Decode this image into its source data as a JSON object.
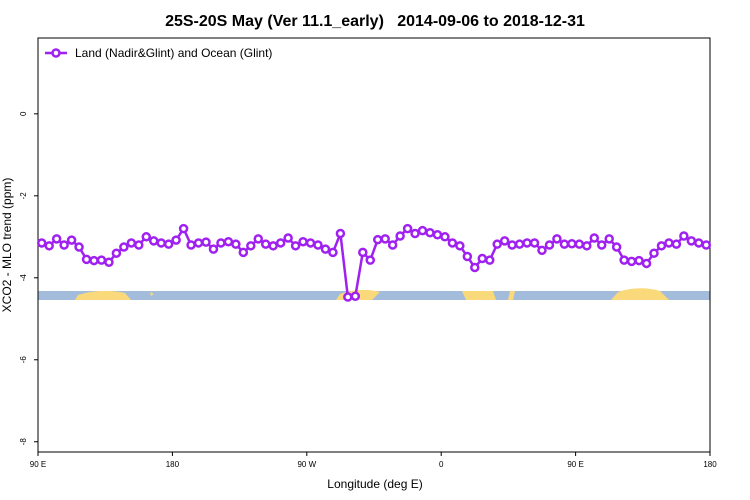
{
  "chart_data": {
    "type": "line",
    "title": "25S-20S May (Ver 11.1_early)   2014-09-06 to 2018-12-31",
    "x_label": "Longitude (deg E)",
    "y_label": "XCO2 - MLO trend (ppm)",
    "xlim": [
      90,
      540
    ],
    "xticks": [
      {
        "value": 90,
        "label": "90 E"
      },
      180,
      {
        "value": 270,
        "label": "90 W"
      },
      {
        "value": 360,
        "label": "0"
      },
      {
        "value": 450,
        "label": "90 E"
      },
      {
        "value": 540,
        "label": "180"
      }
    ],
    "ylim": [
      -8.25,
      1.85
    ],
    "yticks": [
      0,
      -2,
      -4,
      -6,
      -8
    ],
    "legend": "top-left",
    "x": [
      92.5,
      97.5,
      102.5,
      107.5,
      112.5,
      117.5,
      122.5,
      127.5,
      132.5,
      137.5,
      142.5,
      147.5,
      152.5,
      157.5,
      162.5,
      167.5,
      172.5,
      177.5,
      182.5,
      187.5,
      192.5,
      197.5,
      202.5,
      207.5,
      212.5,
      217.5,
      222.5,
      227.5,
      232.5,
      237.5,
      242.5,
      247.5,
      252.5,
      257.5,
      262.5,
      267.5,
      272.5,
      277.5,
      282.5,
      287.5,
      292.5,
      297.5,
      302.5,
      307.5,
      312.5,
      317.5,
      322.5,
      327.5,
      332.5,
      337.5,
      342.5,
      347.5,
      352.5,
      357.5,
      362.5,
      367.5,
      372.5,
      377.5,
      382.5,
      387.5,
      392.5,
      397.5,
      402.5,
      407.5,
      412.5,
      417.5,
      422.5,
      427.5,
      432.5,
      437.5,
      442.5,
      447.5,
      452.5,
      457.5,
      462.5,
      467.5,
      472.5,
      477.5,
      482.5,
      487.5,
      492.5,
      497.5,
      502.5,
      507.5,
      512.5,
      517.5,
      522.5,
      527.5,
      532.5,
      537.5
    ],
    "series": [
      {
        "name": "Land (Nadir&Glint) and Ocean (Glint)",
        "color": "#a020f0",
        "values": [
          -3.15,
          -3.22,
          -3.05,
          -3.2,
          -3.08,
          -3.25,
          -3.55,
          -3.58,
          -3.57,
          -3.62,
          -3.4,
          -3.25,
          -3.15,
          -3.2,
          -3.0,
          -3.1,
          -3.15,
          -3.18,
          -3.08,
          -2.8,
          -3.2,
          -3.15,
          -3.13,
          -3.3,
          -3.15,
          -3.12,
          -3.18,
          -3.38,
          -3.22,
          -3.05,
          -3.18,
          -3.22,
          -3.15,
          -3.03,
          -3.22,
          -3.12,
          -3.15,
          -3.2,
          -3.3,
          -3.38,
          -2.92,
          -4.47,
          -4.45,
          -3.38,
          -3.57,
          -3.07,
          -3.05,
          -3.2,
          -2.98,
          -2.8,
          -2.92,
          -2.85,
          -2.9,
          -2.95,
          -3.0,
          -3.15,
          -3.22,
          -3.48,
          -3.75,
          -3.53,
          -3.57,
          -3.18,
          -3.1,
          -3.2,
          -3.18,
          -3.15,
          -3.15,
          -3.33,
          -3.2,
          -3.05,
          -3.18,
          -3.17,
          -3.18,
          -3.22,
          -3.03,
          -3.2,
          -3.05,
          -3.25,
          -3.57,
          -3.6,
          -3.58,
          -3.65,
          -3.4,
          -3.22,
          -3.15,
          -3.18,
          -2.98,
          -3.1,
          -3.15,
          -3.2
        ]
      }
    ]
  }
}
